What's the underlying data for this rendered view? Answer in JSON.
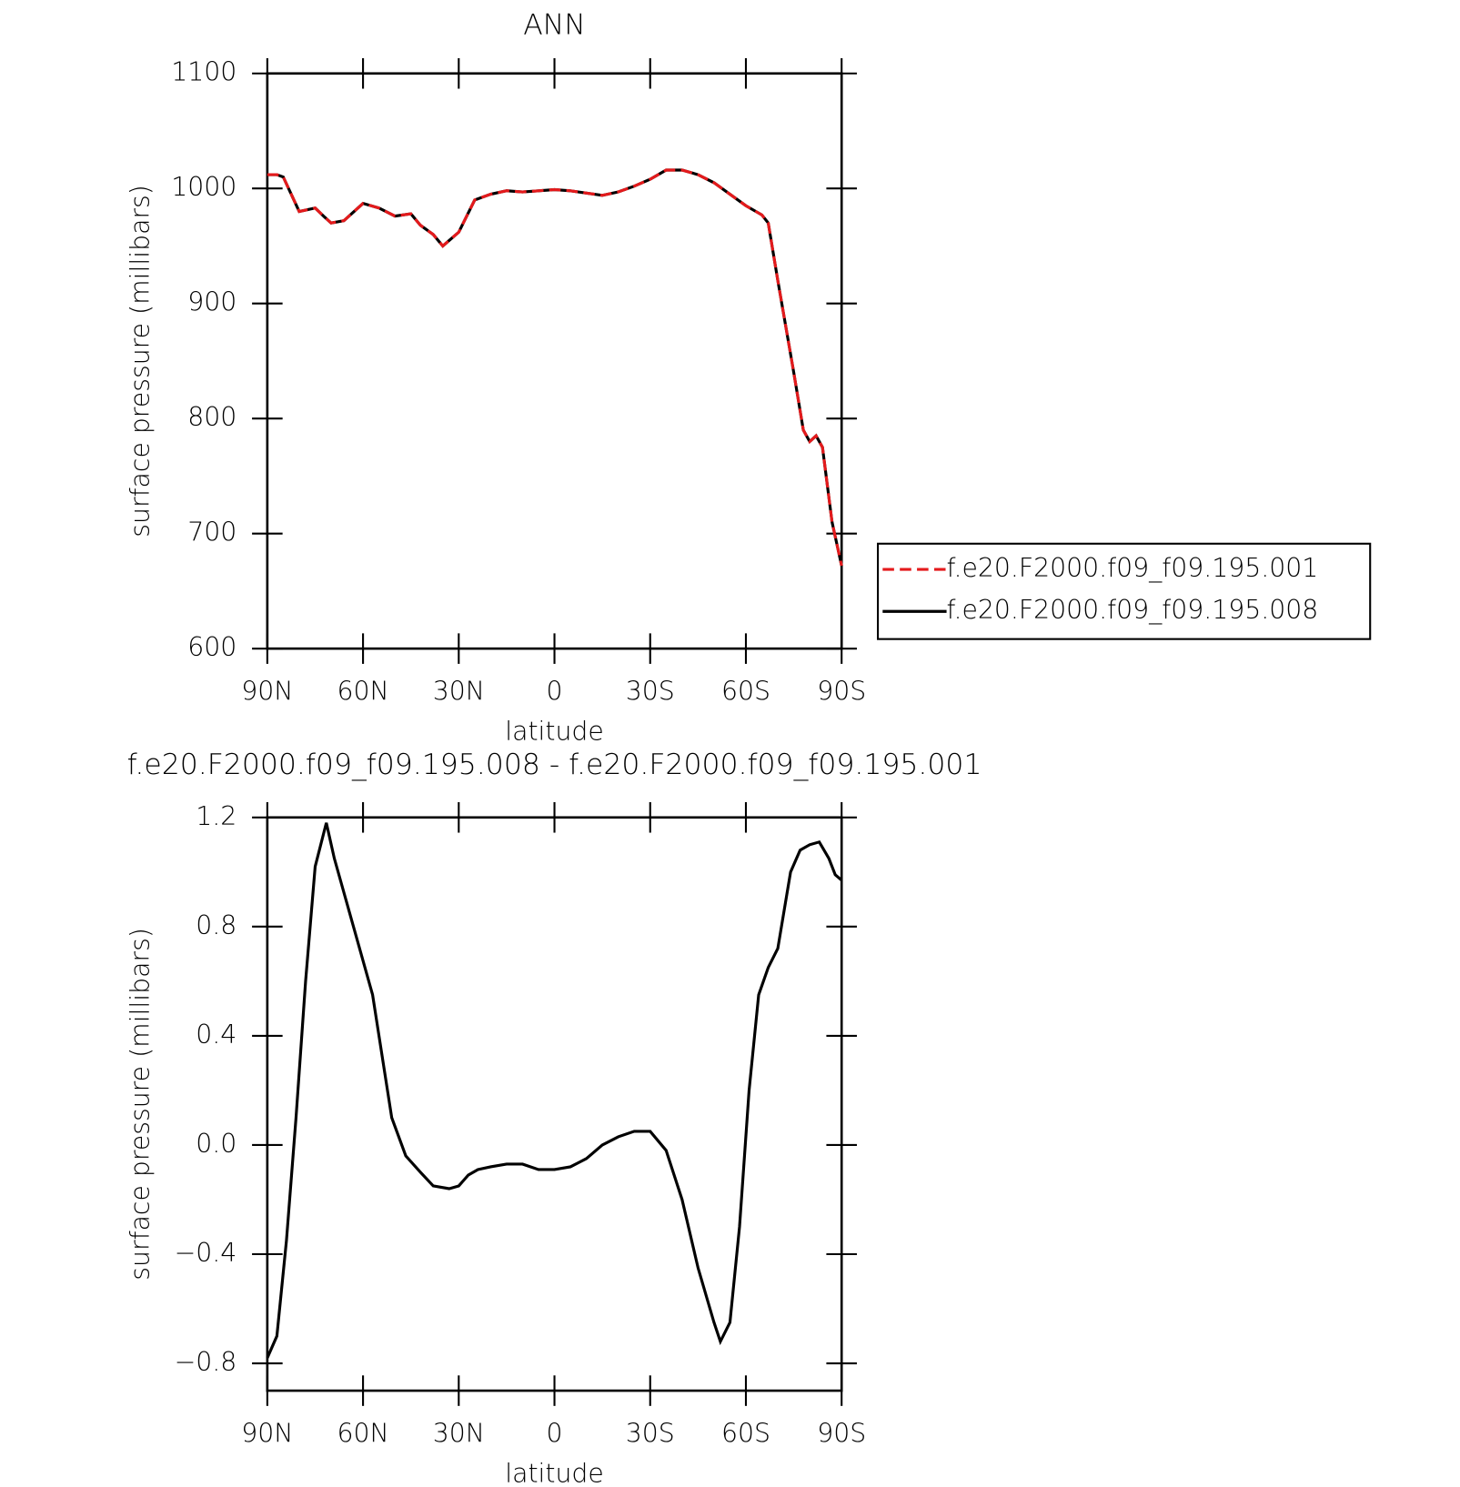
{
  "chart_data": [
    {
      "type": "line",
      "title": "ANN",
      "xlabel": "latitude",
      "ylabel": "surface pressure (millibars)",
      "x": [
        90,
        87,
        85,
        80,
        75,
        72,
        70,
        66,
        60,
        55,
        50,
        45,
        42,
        38,
        35,
        30,
        25,
        20,
        15,
        10,
        5,
        0,
        -5,
        -10,
        -15,
        -20,
        -25,
        -30,
        -35,
        -40,
        -45,
        -50,
        -55,
        -60,
        -65,
        -67,
        -70,
        -75,
        -78,
        -80,
        -82,
        -84,
        -87,
        -90
      ],
      "series": [
        {
          "name": "f.e20.F2000.f09_f09.195.001",
          "color": "#e41a1c",
          "dashed": true,
          "values": [
            1012,
            1012,
            1010,
            980,
            983,
            975,
            970,
            972,
            987,
            983,
            976,
            978,
            968,
            960,
            950,
            962,
            990,
            995,
            998,
            997,
            998,
            999,
            998,
            996,
            994,
            997,
            1002,
            1008,
            1016,
            1016,
            1012,
            1005,
            995,
            985,
            977,
            970,
            920,
            840,
            790,
            780,
            785,
            775,
            710,
            672
          ]
        },
        {
          "name": "f.e20.F2000.f09_f09.195.008",
          "color": "#000000",
          "dashed": false,
          "values": [
            1012,
            1012,
            1010,
            980,
            983,
            975,
            970,
            972,
            987,
            983,
            976,
            978,
            968,
            960,
            950,
            962,
            990,
            995,
            998,
            997,
            998,
            999,
            998,
            996,
            994,
            997,
            1002,
            1008,
            1016,
            1016,
            1012,
            1005,
            995,
            985,
            977,
            970,
            920,
            840,
            790,
            780,
            785,
            775,
            710,
            672
          ]
        }
      ],
      "xlim": [
        90,
        -90
      ],
      "xticks": [
        {
          "value": 90,
          "label": "90N"
        },
        {
          "value": 60,
          "label": "60N"
        },
        {
          "value": 30,
          "label": "30N"
        },
        0,
        {
          "value": -30,
          "label": "30S"
        },
        {
          "value": -60,
          "label": "60S"
        },
        {
          "value": -90,
          "label": "90S"
        }
      ],
      "ylim": [
        600,
        1100
      ],
      "yticks": [
        600,
        700,
        800,
        900,
        1000,
        1100
      ],
      "legend": "outside-right"
    },
    {
      "type": "line",
      "title": "f.e20.F2000.f09_f09.195.008 - f.e20.F2000.f09_f09.195.001",
      "xlabel": "latitude",
      "ylabel": "surface pressure (millibars)",
      "x": [
        90,
        87,
        84,
        81,
        78,
        75,
        71.5,
        69,
        63,
        57,
        51,
        46.6,
        42,
        38,
        33,
        30,
        27,
        24,
        20,
        15,
        10,
        5,
        0,
        -5,
        -10,
        -15,
        -20,
        -25,
        -30,
        -35,
        -40,
        -45,
        -50,
        -52,
        -55,
        -58,
        -61,
        -64,
        -67,
        -70,
        -74,
        -77,
        -80,
        -83,
        -86,
        -88,
        -90
      ],
      "color": "#000000",
      "values": [
        -0.78,
        -0.7,
        -0.35,
        0.1,
        0.6,
        1.02,
        1.18,
        1.05,
        0.8,
        0.55,
        0.1,
        -0.04,
        -0.1,
        -0.15,
        -0.16,
        -0.15,
        -0.11,
        -0.09,
        -0.08,
        -0.07,
        -0.07,
        -0.09,
        -0.09,
        -0.08,
        -0.05,
        0.0,
        0.03,
        0.05,
        0.05,
        -0.02,
        -0.2,
        -0.45,
        -0.65,
        -0.72,
        -0.65,
        -0.3,
        0.2,
        0.55,
        0.65,
        0.72,
        1.0,
        1.08,
        1.1,
        1.11,
        1.05,
        0.99,
        0.97
      ],
      "xlim": [
        90,
        -90
      ],
      "xticks": [
        {
          "value": 90,
          "label": "90N"
        },
        {
          "value": 60,
          "label": "60N"
        },
        {
          "value": 30,
          "label": "30N"
        },
        0,
        {
          "value": -30,
          "label": "30S"
        },
        {
          "value": -60,
          "label": "60S"
        },
        {
          "value": -90,
          "label": "90S"
        }
      ],
      "ylim": [
        -0.9,
        1.2
      ],
      "yticks": [
        {
          "value": -0.8,
          "label": "−0.8"
        },
        {
          "value": -0.4,
          "label": "−0.4"
        },
        {
          "value": 0,
          "label": "0.0"
        },
        0.4,
        0.8,
        1.2
      ]
    }
  ]
}
